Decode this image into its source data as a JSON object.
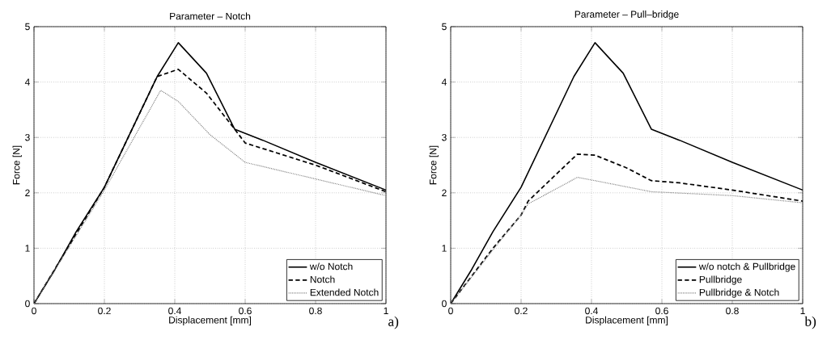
{
  "chart_data": [
    {
      "type": "line",
      "title": "Parameter – Notch",
      "xlabel": "Displacement [mm]",
      "ylabel": "Force [N]",
      "xlim": [
        0,
        1
      ],
      "ylim": [
        0,
        5
      ],
      "xticks": [
        0,
        0.2,
        0.4,
        0.6,
        0.8,
        1
      ],
      "yticks": [
        0,
        1,
        2,
        3,
        4,
        5
      ],
      "grid": true,
      "legend": "bottom right",
      "annotations": [
        "a)"
      ],
      "series": [
        {
          "name": "w/o Notch",
          "color": "#000000",
          "line_style": "solid",
          "x": [
            0,
            0.06,
            0.12,
            0.2,
            0.35,
            0.41,
            0.49,
            0.57,
            0.65,
            0.8,
            1
          ],
          "values": [
            0,
            0.62,
            1.3,
            2.1,
            4.1,
            4.71,
            4.16,
            3.15,
            2.95,
            2.55,
            2.05
          ]
        },
        {
          "name": "Notch",
          "color": "#000000",
          "line_style": "dashed",
          "x": [
            0,
            0.2,
            0.35,
            0.41,
            0.49,
            0.57,
            0.6,
            0.8,
            1
          ],
          "values": [
            0,
            2.1,
            4.1,
            4.23,
            3.8,
            3.15,
            2.9,
            2.5,
            2.02
          ]
        },
        {
          "name": "Extended Notch",
          "color": "#808080",
          "line_style": "dotted",
          "x": [
            0,
            0.2,
            0.36,
            0.41,
            0.5,
            0.6,
            0.8,
            1
          ],
          "values": [
            0,
            2.05,
            3.85,
            3.65,
            3.05,
            2.55,
            2.25,
            1.95
          ]
        }
      ]
    },
    {
      "type": "line",
      "title": "Parameter – Pull–bridge",
      "xlabel": "Displacement [mm]",
      "ylabel": "Force [N]",
      "xlim": [
        0,
        1
      ],
      "ylim": [
        0,
        5
      ],
      "xticks": [
        0,
        0.2,
        0.4,
        0.6,
        0.8,
        1
      ],
      "yticks": [
        0,
        1,
        2,
        3,
        4,
        5
      ],
      "grid": true,
      "legend": "bottom right",
      "annotations": [
        "b)"
      ],
      "series": [
        {
          "name": "w/o notch & Pullbridge",
          "color": "#000000",
          "line_style": "solid",
          "x": [
            0,
            0.06,
            0.12,
            0.2,
            0.35,
            0.41,
            0.49,
            0.57,
            0.65,
            0.8,
            1
          ],
          "values": [
            0,
            0.62,
            1.3,
            2.1,
            4.1,
            4.71,
            4.16,
            3.15,
            2.95,
            2.55,
            2.05
          ]
        },
        {
          "name": "Pullbridge",
          "color": "#000000",
          "line_style": "dashed",
          "x": [
            0,
            0.12,
            0.2,
            0.22,
            0.36,
            0.41,
            0.5,
            0.57,
            0.65,
            0.8,
            1
          ],
          "values": [
            0,
            1.0,
            1.6,
            1.85,
            2.7,
            2.68,
            2.45,
            2.22,
            2.18,
            2.05,
            1.85
          ]
        },
        {
          "name": "Pullbridge & Notch",
          "color": "#808080",
          "line_style": "dotted",
          "x": [
            0,
            0.12,
            0.2,
            0.22,
            0.36,
            0.41,
            0.57,
            0.8,
            1
          ],
          "values": [
            0,
            0.97,
            1.6,
            1.8,
            2.28,
            2.22,
            2.02,
            1.95,
            1.82
          ]
        }
      ]
    }
  ]
}
